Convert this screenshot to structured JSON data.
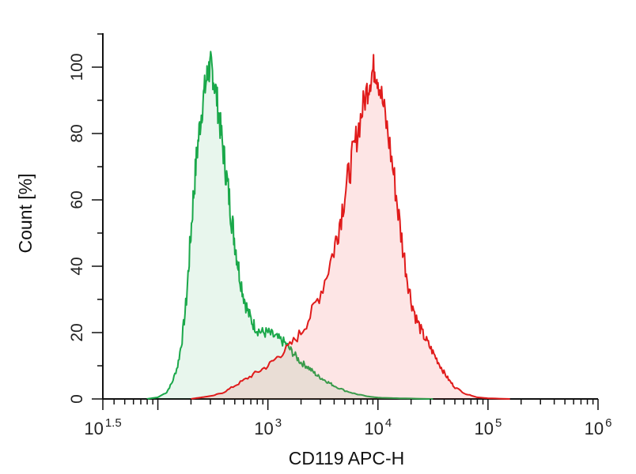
{
  "chart_data": {
    "type": "area",
    "title": "",
    "xlabel": "CD119 APC-H",
    "ylabel": "Count [%]",
    "x_scale": "log10",
    "xlim_log10": [
      1.5,
      6
    ],
    "ylim": [
      0,
      100
    ],
    "x_ticks": [
      {
        "base": "10",
        "exp": "1.5",
        "log10": 1.5
      },
      {
        "base": "10",
        "exp": "3",
        "log10": 3
      },
      {
        "base": "10",
        "exp": "4",
        "log10": 4
      },
      {
        "base": "10",
        "exp": "5",
        "log10": 5
      },
      {
        "base": "10",
        "exp": "6",
        "log10": 6
      }
    ],
    "y_ticks": [
      "0",
      "20",
      "40",
      "60",
      "80",
      "100"
    ],
    "grid": false,
    "legend": "none",
    "series": [
      {
        "color": "#1aa84a",
        "fill": "rgba(26,168,74,0.10)",
        "points_log10": [
          [
            1.9,
            0
          ],
          [
            2.0,
            0.5
          ],
          [
            2.08,
            2
          ],
          [
            2.13,
            5
          ],
          [
            2.18,
            10
          ],
          [
            2.22,
            18
          ],
          [
            2.26,
            30
          ],
          [
            2.29,
            45
          ],
          [
            2.32,
            60
          ],
          [
            2.35,
            72
          ],
          [
            2.38,
            82
          ],
          [
            2.41,
            90
          ],
          [
            2.44,
            96
          ],
          [
            2.46,
            99
          ],
          [
            2.48,
            100
          ],
          [
            2.5,
            98
          ],
          [
            2.53,
            92
          ],
          [
            2.56,
            84
          ],
          [
            2.59,
            76
          ],
          [
            2.62,
            68
          ],
          [
            2.65,
            60
          ],
          [
            2.68,
            52
          ],
          [
            2.71,
            45
          ],
          [
            2.74,
            38
          ],
          [
            2.78,
            31
          ],
          [
            2.82,
            26
          ],
          [
            2.86,
            23
          ],
          [
            2.9,
            21
          ],
          [
            2.95,
            20
          ],
          [
            3.0,
            20
          ],
          [
            3.05,
            19
          ],
          [
            3.1,
            18
          ],
          [
            3.15,
            17
          ],
          [
            3.2,
            15
          ],
          [
            3.25,
            13
          ],
          [
            3.3,
            11
          ],
          [
            3.35,
            10
          ],
          [
            3.4,
            8.5
          ],
          [
            3.45,
            7
          ],
          [
            3.5,
            6
          ],
          [
            3.55,
            5
          ],
          [
            3.6,
            4
          ],
          [
            3.7,
            2.5
          ],
          [
            3.8,
            1.5
          ],
          [
            3.9,
            0.8
          ],
          [
            4.0,
            0.4
          ],
          [
            4.2,
            0.2
          ],
          [
            4.5,
            0
          ]
        ]
      },
      {
        "color": "#e01b1b",
        "fill": "rgba(240,80,80,0.15)",
        "points_log10": [
          [
            2.3,
            0
          ],
          [
            2.4,
            0.5
          ],
          [
            2.5,
            1
          ],
          [
            2.6,
            2
          ],
          [
            2.7,
            4
          ],
          [
            2.8,
            6
          ],
          [
            2.9,
            8
          ],
          [
            3.0,
            10
          ],
          [
            3.1,
            13
          ],
          [
            3.2,
            16
          ],
          [
            3.3,
            20
          ],
          [
            3.4,
            26
          ],
          [
            3.5,
            34
          ],
          [
            3.6,
            45
          ],
          [
            3.65,
            53
          ],
          [
            3.7,
            62
          ],
          [
            3.75,
            70
          ],
          [
            3.8,
            78
          ],
          [
            3.85,
            86
          ],
          [
            3.9,
            93
          ],
          [
            3.94,
            98
          ],
          [
            3.97,
            100
          ],
          [
            4.0,
            97
          ],
          [
            4.05,
            88
          ],
          [
            4.1,
            78
          ],
          [
            4.15,
            66
          ],
          [
            4.2,
            52
          ],
          [
            4.25,
            40
          ],
          [
            4.3,
            30
          ],
          [
            4.35,
            24
          ],
          [
            4.4,
            20
          ],
          [
            4.45,
            17
          ],
          [
            4.5,
            14
          ],
          [
            4.55,
            11
          ],
          [
            4.6,
            8
          ],
          [
            4.65,
            5.5
          ],
          [
            4.7,
            3.5
          ],
          [
            4.8,
            1.5
          ],
          [
            4.9,
            0.5
          ],
          [
            5.0,
            0.2
          ],
          [
            5.2,
            0
          ]
        ]
      }
    ]
  }
}
